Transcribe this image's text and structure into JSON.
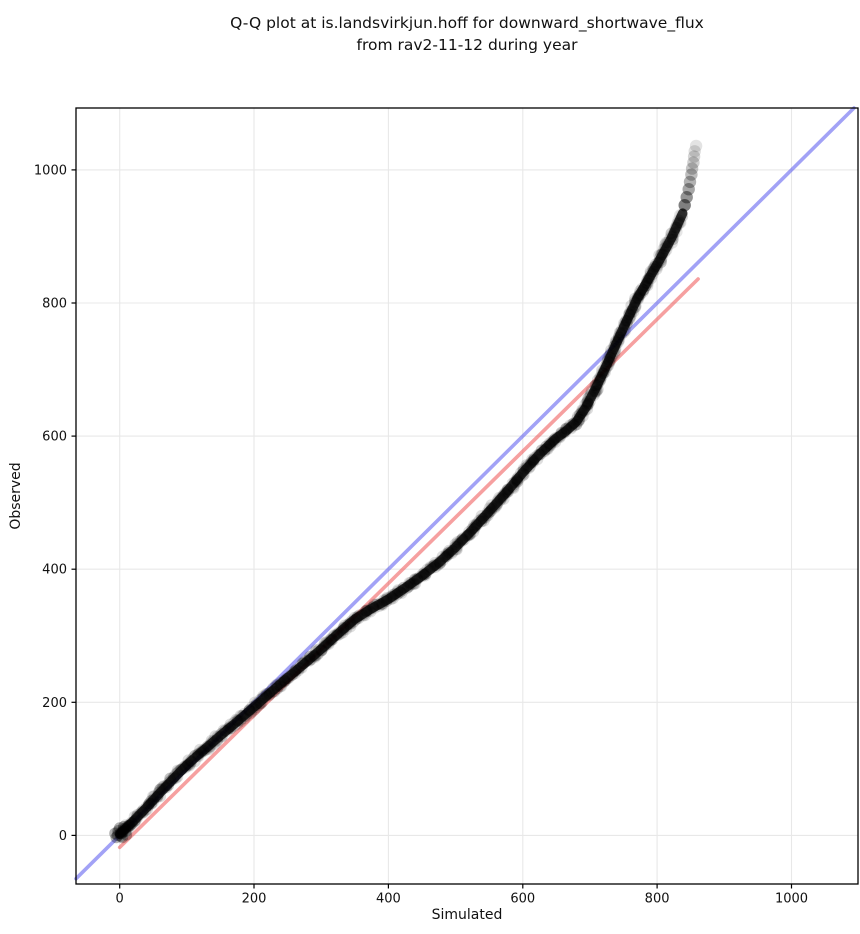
{
  "figure": {
    "title_line1": "Q-Q plot at is.landsvirkjun.hoff for downward_shortwave_flux",
    "title_line2": "from rav2-11-12 during year",
    "xlabel": "Simulated",
    "ylabel": "Observed"
  },
  "chart_data": {
    "type": "scatter",
    "title": "Q-Q plot at is.landsvirkjun.hoff for downward_shortwave_flux from rav2-11-12 during year",
    "xlabel": "Simulated",
    "ylabel": "Observed",
    "x_ticks": [
      0,
      200,
      400,
      600,
      800,
      1000
    ],
    "y_ticks": [
      0,
      200,
      400,
      600,
      800,
      1000
    ],
    "xlim": [
      -65,
      1099
    ],
    "ylim": [
      -73,
      1093
    ],
    "grid": true,
    "grid_color": "#e8e8e8",
    "background": "#ffffff",
    "points_color": "#000000",
    "identity_line": {
      "name": "reference-identity-line",
      "color": "#5555ee",
      "opacity": 0.55,
      "from": [
        -65,
        -65
      ],
      "to": [
        1093,
        1093
      ]
    },
    "fit_line": {
      "name": "regression-fit-line",
      "color": "#ee4949",
      "opacity": 0.52,
      "from": [
        0,
        -18
      ],
      "to": [
        861,
        836
      ]
    },
    "qq_points": [
      [
        0,
        2
      ],
      [
        20,
        21
      ],
      [
        40,
        42
      ],
      [
        60,
        64
      ],
      [
        80,
        85
      ],
      [
        100,
        106
      ],
      [
        125,
        128
      ],
      [
        150,
        150
      ],
      [
        175,
        171
      ],
      [
        200,
        193
      ],
      [
        225,
        215
      ],
      [
        250,
        237
      ],
      [
        275,
        258
      ],
      [
        300,
        280
      ],
      [
        325,
        303
      ],
      [
        350,
        325
      ],
      [
        375,
        341
      ],
      [
        400,
        355
      ],
      [
        425,
        372
      ],
      [
        450,
        390
      ],
      [
        475,
        410
      ],
      [
        500,
        433
      ],
      [
        525,
        459
      ],
      [
        550,
        487
      ],
      [
        575,
        515
      ],
      [
        600,
        545
      ],
      [
        625,
        573
      ],
      [
        650,
        597
      ],
      [
        665,
        608
      ],
      [
        680,
        622
      ],
      [
        695,
        645
      ],
      [
        710,
        675
      ],
      [
        725,
        707
      ],
      [
        740,
        741
      ],
      [
        755,
        774
      ],
      [
        770,
        806
      ],
      [
        785,
        832
      ],
      [
        800,
        858
      ],
      [
        812,
        880
      ],
      [
        822,
        899
      ],
      [
        830,
        917
      ],
      [
        838,
        935
      ]
    ],
    "origin_cluster": [
      [
        -3,
        0
      ],
      [
        1,
        3
      ],
      [
        5,
        7
      ],
      [
        -5,
        -3
      ],
      [
        8,
        10
      ],
      [
        0,
        11
      ],
      [
        4,
        -3
      ],
      [
        12,
        13
      ],
      [
        -7,
        3
      ],
      [
        10,
        1
      ],
      [
        14,
        15
      ],
      [
        6,
        13
      ],
      [
        -2,
        7
      ],
      [
        9,
        6
      ],
      [
        2,
        -1
      ]
    ],
    "tail_points": [
      [
        841,
        947,
        0.5
      ],
      [
        844,
        959,
        0.42
      ],
      [
        847,
        971,
        0.35
      ],
      [
        849,
        982,
        0.3
      ],
      [
        851,
        993,
        0.26
      ],
      [
        852,
        1002,
        0.22
      ],
      [
        854,
        1011,
        0.19
      ],
      [
        855,
        1020,
        0.16
      ],
      [
        856,
        1028,
        0.13
      ],
      [
        858,
        1036,
        0.11
      ]
    ]
  }
}
